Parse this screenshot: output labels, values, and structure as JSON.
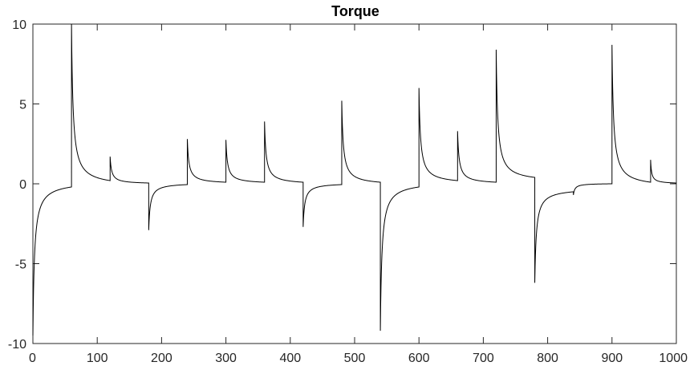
{
  "chart_data": {
    "type": "line",
    "title": "Torque",
    "xlabel": "",
    "ylabel": "",
    "xlim": [
      0,
      1000
    ],
    "ylim": [
      -10,
      10
    ],
    "x_ticks": [
      0,
      100,
      200,
      300,
      400,
      500,
      600,
      700,
      800,
      900,
      1000
    ],
    "y_ticks": [
      -10,
      -5,
      0,
      5,
      10
    ],
    "x_tick_labels": [
      "0",
      "100",
      "200",
      "300",
      "400",
      "500",
      "600",
      "700",
      "800",
      "900",
      "1000"
    ],
    "y_tick_labels": [
      "-10",
      "-5",
      "0",
      "5",
      "10"
    ],
    "grid": false,
    "line_color": "#000000",
    "segments": [
      {
        "start": 0,
        "end": 60,
        "peak": -9.5,
        "end_value": -0.2
      },
      {
        "start": 60,
        "end": 120,
        "peak": 10.0,
        "end_value": 0.2
      },
      {
        "start": 120,
        "end": 180,
        "peak": 1.7,
        "end_value": 0.05
      },
      {
        "start": 180,
        "end": 240,
        "peak": -2.9,
        "end_value": -0.05
      },
      {
        "start": 240,
        "end": 300,
        "peak": 2.8,
        "end_value": 0.1
      },
      {
        "start": 300,
        "end": 360,
        "peak": 2.75,
        "end_value": 0.1
      },
      {
        "start": 360,
        "end": 420,
        "peak": 3.9,
        "end_value": 0.1
      },
      {
        "start": 420,
        "end": 480,
        "peak": -2.7,
        "end_value": -0.05
      },
      {
        "start": 480,
        "end": 540,
        "peak": 5.2,
        "end_value": 0.1
      },
      {
        "start": 540,
        "end": 600,
        "peak": -9.2,
        "end_value": -0.2
      },
      {
        "start": 600,
        "end": 660,
        "peak": 6.0,
        "end_value": 0.2
      },
      {
        "start": 660,
        "end": 720,
        "peak": 3.3,
        "end_value": 0.1
      },
      {
        "start": 720,
        "end": 780,
        "peak": 8.4,
        "end_value": 0.4
      },
      {
        "start": 780,
        "end": 840,
        "peak": -6.2,
        "end_value": -0.5
      },
      {
        "start": 840,
        "end": 900,
        "peak": -0.7,
        "end_value": 0.0
      },
      {
        "start": 900,
        "end": 960,
        "peak": 8.7,
        "end_value": 0.1
      },
      {
        "start": 960,
        "end": 1000,
        "peak": 1.5,
        "end_value": 0.05
      }
    ]
  }
}
